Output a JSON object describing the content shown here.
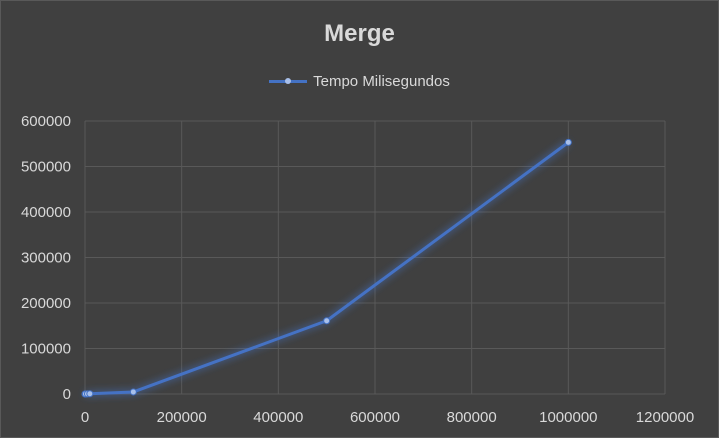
{
  "chart_data": {
    "type": "scatter",
    "title": "Merge",
    "xlabel": "",
    "ylabel": "",
    "xlim": [
      0,
      1200000
    ],
    "ylim": [
      0,
      600000
    ],
    "x_ticks": [
      "0",
      "200000",
      "400000",
      "600000",
      "800000",
      "1000000",
      "1200000"
    ],
    "y_ticks": [
      "0",
      "100000",
      "200000",
      "300000",
      "400000",
      "500000",
      "600000"
    ],
    "grid": true,
    "legend_position": "top",
    "series": [
      {
        "name": "Tempo Milisegundos",
        "color": "#4472c4",
        "x": [
          0,
          1000,
          5000,
          10000,
          100000,
          500000,
          1000000
        ],
        "y": [
          0,
          100,
          200,
          500,
          4500,
          161000,
          553000
        ]
      }
    ]
  }
}
